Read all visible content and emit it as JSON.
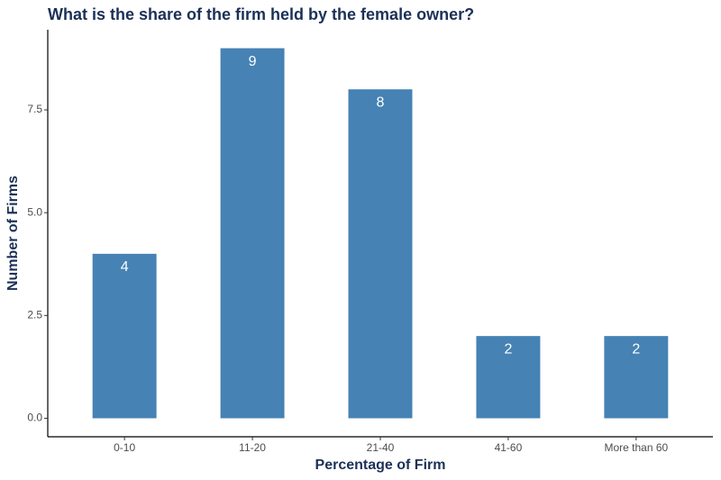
{
  "chart_data": {
    "type": "bar",
    "title": "What is the share of the firm held by the female owner?",
    "x_label": "Percentage of Firm",
    "y_label": "Number of Firms",
    "categories": [
      "0-10",
      "11-20",
      "21-40",
      "41-60",
      "More than 60"
    ],
    "values": [
      4,
      9,
      8,
      2,
      2
    ],
    "color": "#4682b4",
    "ylim": [
      -0.45,
      9.45
    ],
    "yticks": [
      {
        "value": 0,
        "label": "0.0"
      },
      2.5,
      {
        "value": 5,
        "label": "5.0"
      },
      7.5
    ],
    "grid": false
  }
}
